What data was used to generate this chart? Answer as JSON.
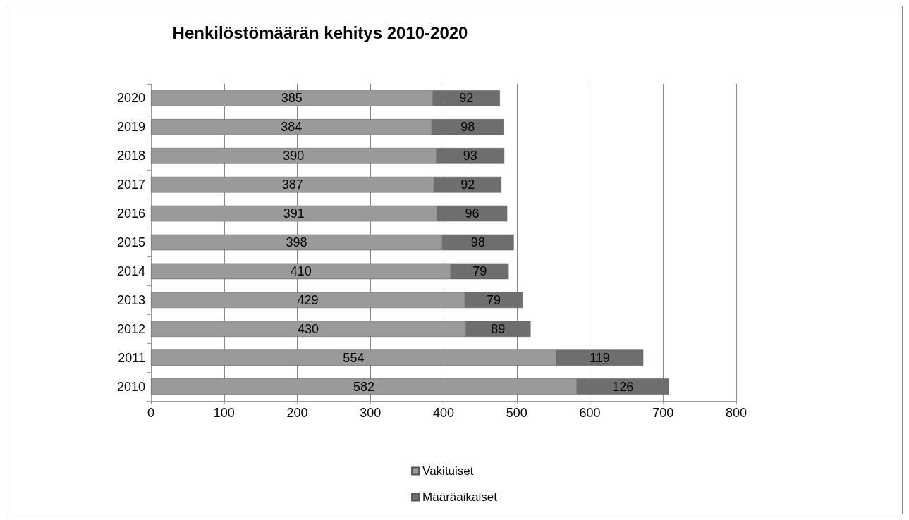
{
  "chart_data": {
    "type": "bar",
    "title": "Henkilöstömäärän kehitys 2010-2020",
    "orientation": "horizontal",
    "stacked": true,
    "categories": [
      "2020",
      "2019",
      "2018",
      "2017",
      "2016",
      "2015",
      "2014",
      "2013",
      "2012",
      "2011",
      "2010"
    ],
    "series": [
      {
        "name": "Vakituiset",
        "color": "#9a9a9a",
        "values": [
          385,
          384,
          390,
          387,
          391,
          398,
          410,
          429,
          430,
          554,
          582
        ]
      },
      {
        "name": "Määräaikaiset",
        "color": "#6e6e6e",
        "values": [
          92,
          98,
          93,
          92,
          96,
          98,
          79,
          79,
          89,
          119,
          126
        ]
      }
    ],
    "xlim": [
      0,
      800
    ],
    "xticks": [
      0,
      100,
      200,
      300,
      400,
      500,
      600,
      700,
      800
    ],
    "grid": "x",
    "legend": "bottom",
    "data_labels": true
  }
}
